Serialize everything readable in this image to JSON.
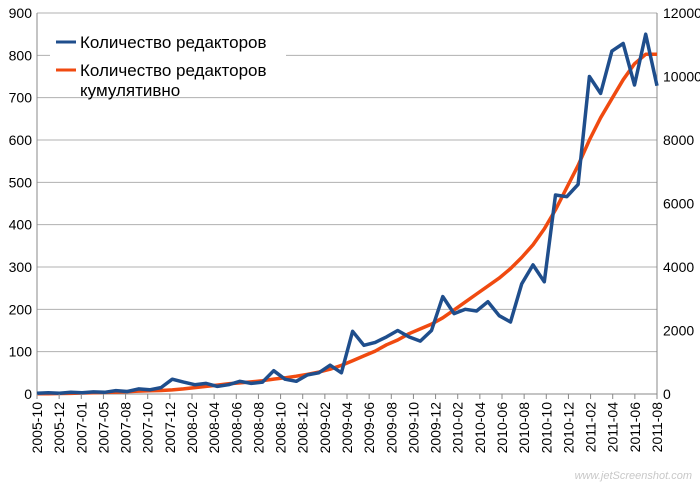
{
  "chart_data": {
    "type": "line",
    "colors": {
      "editors": "#1f4e8c",
      "cumulative": "#f04a10",
      "grid": "#b0b0b0"
    },
    "legend_placement": "top-left",
    "grid": true,
    "y_left": {
      "ylim": [
        0,
        900
      ],
      "ticks": [
        "0",
        "100",
        "200",
        "300",
        "400",
        "500",
        "600",
        "700",
        "800",
        "900"
      ]
    },
    "y_right": {
      "ylim": [
        0,
        12000
      ],
      "ticks": [
        "0",
        "2000",
        "4000",
        "6000",
        "8000",
        "10000",
        "12000"
      ]
    },
    "x_labels": [
      "2005-10",
      "2005-12",
      "2007-01",
      "2007-05",
      "2007-08",
      "2007-10",
      "2007-12",
      "2008-02",
      "2008-04",
      "2008-06",
      "2008-08",
      "2008-10",
      "2008-12",
      "2009-02",
      "2009-04",
      "2009-06",
      "2009-08",
      "2009-10",
      "2009-12",
      "2010-02",
      "2010-04",
      "2010-06",
      "2010-08",
      "2010-10",
      "2010-12",
      "2011-02",
      "2011-04",
      "2011-06",
      "2011-08"
    ],
    "series": [
      {
        "name": "Количество редакторов",
        "axis": "left",
        "values": [
          2,
          3,
          2,
          4,
          3,
          5,
          4,
          8,
          6,
          12,
          10,
          15,
          35,
          28,
          22,
          25,
          18,
          22,
          30,
          25,
          28,
          55,
          35,
          30,
          45,
          50,
          68,
          50,
          148,
          115,
          122,
          135,
          150,
          135,
          125,
          150,
          230,
          190,
          200,
          196,
          218,
          185,
          170,
          260,
          305,
          265,
          470,
          466,
          495,
          750,
          710,
          810,
          828,
          730,
          850,
          728
        ]
      },
      {
        "name": "Количество редакторов\nкумулятивно",
        "axis": "right",
        "values": [
          5,
          10,
          15,
          20,
          30,
          40,
          50,
          60,
          75,
          90,
          100,
          110,
          130,
          160,
          200,
          240,
          280,
          320,
          350,
          380,
          420,
          470,
          510,
          560,
          620,
          690,
          780,
          900,
          1050,
          1200,
          1350,
          1550,
          1700,
          1900,
          2050,
          2200,
          2400,
          2650,
          2900,
          3150,
          3400,
          3650,
          3950,
          4300,
          4700,
          5200,
          5800,
          6500,
          7200,
          8000,
          8700,
          9300,
          9900,
          10400,
          10700,
          10700
        ]
      }
    ]
  },
  "legend": {
    "line1": "Количество редакторов",
    "line2a": "Количество редакторов",
    "line2b": "кумулятивно"
  },
  "watermark": "www.jetScreenshot.com"
}
